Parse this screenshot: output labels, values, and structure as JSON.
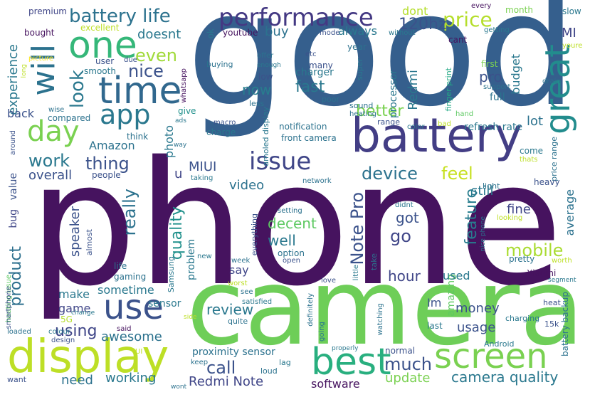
{
  "cloud": {
    "palette": {
      "deep_purple": "#46135f",
      "indigo": "#414487",
      "slate_blue": "#355f8d",
      "teal": "#2a788e",
      "sea_green": "#21918c",
      "green": "#22a884",
      "light_green": "#44bf70",
      "lime": "#7ad151",
      "yellow_green": "#bddf26",
      "yellow": "#fde725"
    },
    "words": [
      "phone",
      "good",
      "camera",
      "battery",
      "display",
      "one",
      "time",
      "use",
      "performance",
      "best",
      "screen",
      "app",
      "day",
      "will",
      "great",
      "battery life",
      "price",
      "issue",
      "look",
      "nice",
      "even",
      "work",
      "thing",
      "device",
      "feel",
      "mobile",
      "quality",
      "product",
      "using",
      "really",
      "feature",
      "Note Pro",
      "call",
      "go",
      "much",
      "camera quality",
      "Redmi Note",
      "need",
      "working",
      "awesome",
      "review",
      "money",
      "decent",
      "well",
      "video",
      "got",
      "hour",
      "fine",
      "better",
      "fast",
      "now",
      "doesnt",
      "buy",
      "always",
      "dont",
      "120hz",
      "pro",
      "MI",
      "Redmi",
      "experience",
      "overall",
      "speaker",
      "sometime",
      "update",
      "software",
      "MIUI",
      "u",
      "still",
      "lot",
      "usage",
      "make",
      "game",
      "say",
      "amazing",
      "average",
      "refresh rate",
      "Amazon",
      "photo",
      "budget",
      "charger",
      "processor",
      "full",
      "back",
      "value",
      "bug",
      "problem",
      "proximity sensor",
      "sensor",
      "used",
      "Im",
      "excellent",
      "premium",
      "bought",
      "youtube",
      "ok",
      "user",
      "smooth",
      "compared",
      "give",
      "think",
      "people",
      "charge",
      "notification",
      "front camera",
      "amoled display",
      "finger print",
      "price range",
      "battery backup",
      "Xiaomi",
      "heating issue",
      "smartphone",
      "5G",
      "gaming",
      "life",
      "Samsung",
      "almost",
      "option",
      "many",
      "low",
      "less",
      "sound",
      "heating",
      "range",
      "color",
      "first",
      "cant",
      "month",
      "every",
      "slow",
      "youre",
      "getting",
      "without",
      "mode",
      "etc",
      "year",
      "offer",
      "enough",
      "super",
      "poor",
      "support",
      "drain",
      "due",
      "buying",
      "macro",
      "ads",
      "way",
      "wise",
      "whatsapp",
      "long",
      "picture",
      "around",
      "taking",
      "network",
      "light",
      "heavy",
      "come",
      "thats",
      "bad",
      "hand",
      "didnt",
      "setting",
      "everything",
      "new",
      "week",
      "open",
      "take",
      "little",
      "pretty",
      "looking",
      "nice phone",
      "worth",
      "segment",
      "worst",
      "see",
      "satisfied",
      "quite",
      "going",
      "definitely",
      "love",
      "watching",
      "last",
      "charging",
      "15k",
      "heat",
      "Android",
      "normal",
      "lag",
      "loud",
      "keep",
      "properly",
      "colour",
      "design",
      "loaded",
      "said",
      "change",
      "side",
      "UI",
      "want",
      "wont"
    ]
  }
}
